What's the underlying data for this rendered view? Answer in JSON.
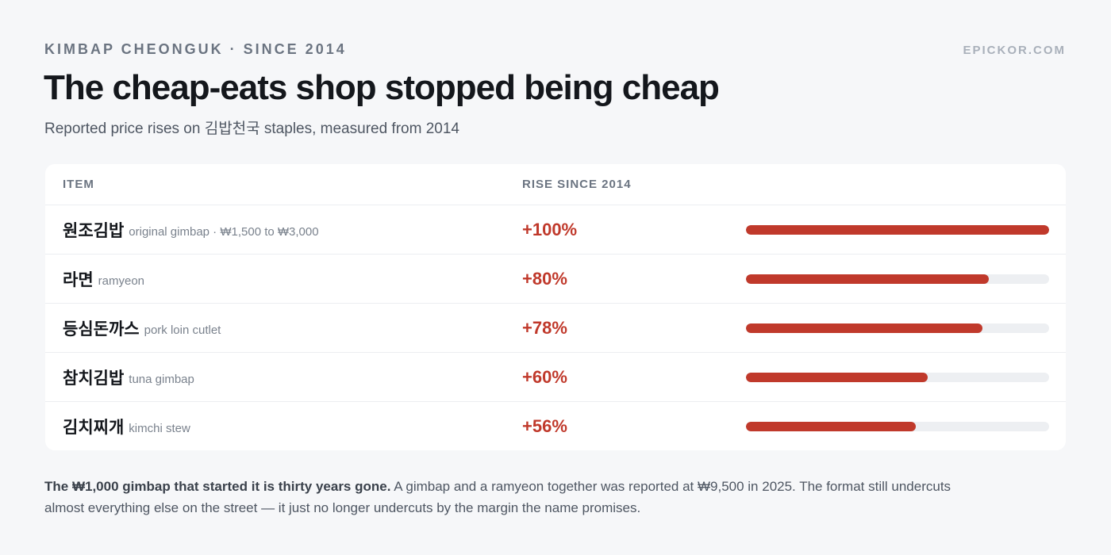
{
  "header": {
    "kicker": "KIMBAP CHEONGUK · SINCE 2014",
    "site": "EPICKOR.COM",
    "title": "The cheap-eats shop stopped being cheap",
    "subtitle": "Reported price rises on 김밥천국 staples, measured from 2014"
  },
  "table": {
    "col_item": "ITEM",
    "col_rise": "RISE SINCE 2014"
  },
  "chart_data": {
    "type": "bar",
    "orientation": "horizontal",
    "ylabel": "RISE SINCE 2014",
    "xlim": [
      0,
      100
    ],
    "unit": "%",
    "bar_color": "#c0392b",
    "track_color": "#edeff2",
    "rows": [
      {
        "ko": "원조김밥",
        "en": "original gimbap · ₩1,500 to ₩3,000",
        "label": "+100%",
        "value": 100
      },
      {
        "ko": "라면",
        "en": "ramyeon",
        "label": "+80%",
        "value": 80
      },
      {
        "ko": "등심돈까스",
        "en": "pork loin cutlet",
        "label": "+78%",
        "value": 78
      },
      {
        "ko": "참치김밥",
        "en": "tuna gimbap",
        "label": "+60%",
        "value": 60
      },
      {
        "ko": "김치찌개",
        "en": "kimchi stew",
        "label": "+56%",
        "value": 56
      }
    ]
  },
  "footnote": {
    "lead": "The ₩1,000 gimbap that started it is thirty years gone.",
    "body": " A gimbap and a ramyeon together was reported at ₩9,500 in 2025. The format still undercuts almost everything else on the street — it just no longer undercuts by the margin the name promises."
  }
}
